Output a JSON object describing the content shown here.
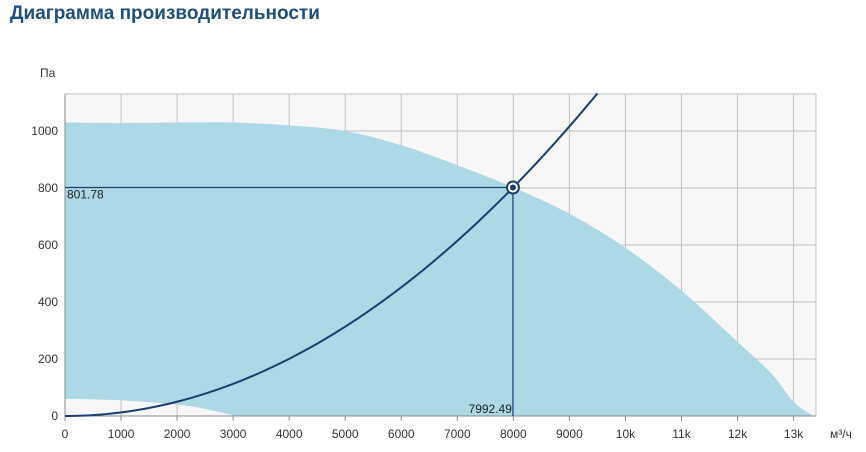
{
  "title": "Диаграмма производительности",
  "chart_data": {
    "type": "area",
    "ylabel": "Па",
    "xlabel": "м³/ч",
    "xlim": [
      0,
      13400
    ],
    "ylim": [
      0,
      1130
    ],
    "x_ticks": [
      {
        "value": 0,
        "label": "0"
      },
      {
        "value": 1000,
        "label": "1000"
      },
      {
        "value": 2000,
        "label": "2000"
      },
      {
        "value": 3000,
        "label": "3000"
      },
      {
        "value": 4000,
        "label": "4000"
      },
      {
        "value": 5000,
        "label": "5000"
      },
      {
        "value": 6000,
        "label": "6000"
      },
      {
        "value": 7000,
        "label": "7000"
      },
      {
        "value": 8000,
        "label": "8000"
      },
      {
        "value": 9000,
        "label": "9000"
      },
      {
        "value": 10000,
        "label": "10k"
      },
      {
        "value": 11000,
        "label": "11k"
      },
      {
        "value": 12000,
        "label": "12k"
      },
      {
        "value": 13000,
        "label": "13k"
      }
    ],
    "y_ticks": [
      {
        "value": 0,
        "label": "0"
      },
      {
        "value": 200,
        "label": "200"
      },
      {
        "value": 400,
        "label": "400"
      },
      {
        "value": 600,
        "label": "600"
      },
      {
        "value": 800,
        "label": "800"
      },
      {
        "value": 1000,
        "label": "1000"
      }
    ],
    "grid": true,
    "working_area": {
      "upper": [
        [
          0,
          1030
        ],
        [
          1000,
          1028
        ],
        [
          2000,
          1030
        ],
        [
          3000,
          1030
        ],
        [
          4000,
          1020
        ],
        [
          5000,
          1000
        ],
        [
          6000,
          950
        ],
        [
          7000,
          880
        ],
        [
          8000,
          802
        ],
        [
          9000,
          710
        ],
        [
          10000,
          590
        ],
        [
          11000,
          440
        ],
        [
          12000,
          260
        ],
        [
          12600,
          150
        ],
        [
          13000,
          50
        ],
        [
          13350,
          0
        ]
      ],
      "lower": [
        [
          0,
          60
        ],
        [
          1000,
          55
        ],
        [
          2000,
          40
        ],
        [
          2500,
          25
        ],
        [
          3050,
          0
        ]
      ]
    },
    "system_curve": {
      "coefficient": 1.2545e-05,
      "x_range": [
        0,
        9500
      ]
    },
    "operating_point": {
      "x": 7992.49,
      "y": 801.78,
      "x_label": "7992.49",
      "y_label": "801.78"
    },
    "colors": {
      "area": "#add8e6",
      "curve": "#1a3e6e",
      "plot_bg": "#f7f7f7",
      "grid": "#c0c0c0",
      "title": "#1f4f7c"
    }
  }
}
